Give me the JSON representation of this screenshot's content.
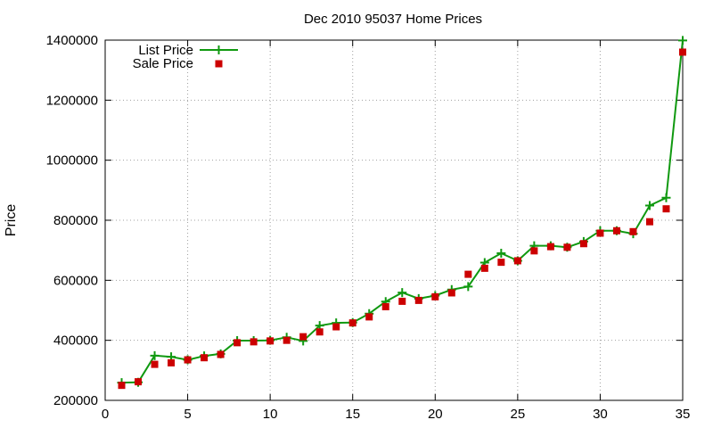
{
  "chart_data": {
    "type": "line",
    "title": "Dec 2010 95037 Home Prices",
    "xlabel": "",
    "ylabel": "Price",
    "xlim": [
      0,
      35
    ],
    "ylim": [
      200000,
      1400000
    ],
    "xticks": [
      0,
      5,
      10,
      15,
      20,
      25,
      30,
      35
    ],
    "yticks": [
      200000,
      400000,
      600000,
      800000,
      1000000,
      1200000,
      1400000
    ],
    "grid": true,
    "legend_position": "top-left",
    "x": [
      1,
      2,
      3,
      4,
      5,
      6,
      7,
      8,
      9,
      10,
      11,
      12,
      13,
      14,
      15,
      16,
      17,
      18,
      19,
      20,
      21,
      22,
      23,
      24,
      25,
      26,
      27,
      28,
      29,
      30,
      31,
      32,
      33,
      34,
      35
    ],
    "series": [
      {
        "name": "List Price",
        "style": "line-with-plus-markers",
        "color": "#109910",
        "values": [
          259000,
          260000,
          349000,
          345000,
          335000,
          348000,
          355000,
          399000,
          399000,
          400000,
          410000,
          398000,
          449000,
          458000,
          459000,
          489000,
          529000,
          559000,
          539000,
          549000,
          569000,
          579000,
          659000,
          690000,
          665000,
          715000,
          715000,
          710000,
          729000,
          765000,
          765000,
          755000,
          849000,
          875000,
          1399000
        ]
      },
      {
        "name": "Sale Price",
        "style": "square-markers",
        "color": "#cc0000",
        "values": [
          250000,
          262000,
          320000,
          325000,
          335000,
          342000,
          353000,
          392000,
          395000,
          398000,
          400000,
          412000,
          428000,
          445000,
          458000,
          478000,
          512000,
          530000,
          533000,
          545000,
          558000,
          620000,
          640000,
          660000,
          665000,
          698000,
          712000,
          710000,
          722000,
          757000,
          765000,
          762000,
          795000,
          838000,
          1360000
        ]
      }
    ]
  }
}
